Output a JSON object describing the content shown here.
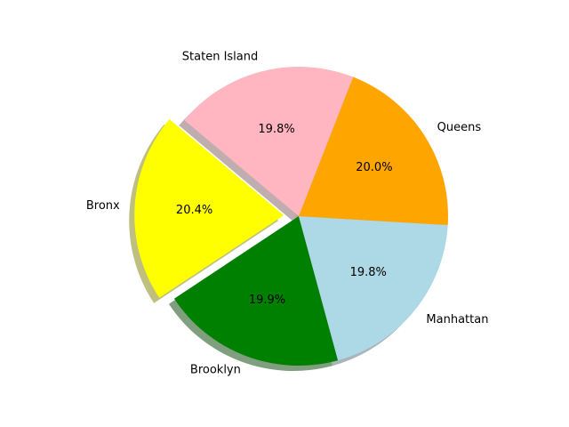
{
  "chart_data": {
    "type": "pie",
    "labels": [
      "Bronx",
      "Brooklyn",
      "Manhattan",
      "Queens",
      "Staten Island"
    ],
    "values": [
      20.4,
      19.9,
      19.8,
      20.0,
      19.8
    ],
    "percent_labels": [
      "20.4%",
      "19.9%",
      "19.8%",
      "20.0%",
      "19.8%"
    ],
    "colors": [
      "#ffff00",
      "#008000",
      "#add8e6",
      "#ffa500",
      "#ffb6c1"
    ],
    "explode": [
      0.1,
      0,
      0,
      0,
      0
    ],
    "start_angle_deg": 140,
    "shadow": true,
    "title": ""
  }
}
